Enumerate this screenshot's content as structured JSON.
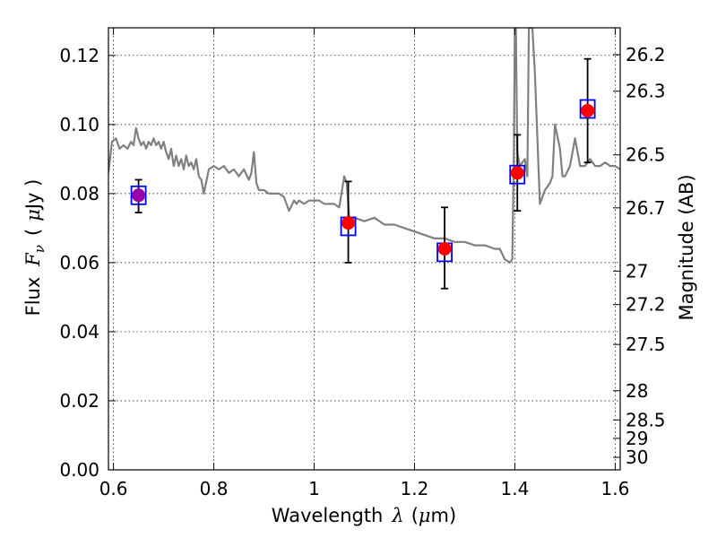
{
  "chart_data": {
    "type": "scatter",
    "title": "",
    "xlabel": {
      "prefix": "Wavelength",
      "symbol": "λ",
      "open": "(",
      "mu": "μ",
      "unit": "m)"
    },
    "ylabel": {
      "prefix": "Flux",
      "symbol": "F",
      "sub": "ν",
      "open": "(",
      "mu": "μ",
      "unit": "Jy )"
    },
    "y2label": "Magnitude (AB)",
    "xlim": [
      0.59,
      1.61
    ],
    "ylim": [
      0.0,
      0.128
    ],
    "grid": true,
    "x_ticks": [
      {
        "value": 0.6,
        "label": "0.6"
      },
      {
        "value": 0.8,
        "label": "0.8"
      },
      {
        "value": 1.0,
        "label": "1"
      },
      {
        "value": 1.2,
        "label": "1.2"
      },
      {
        "value": 1.4,
        "label": "1.4"
      },
      {
        "value": 1.6,
        "label": "1.6"
      }
    ],
    "y_ticks": [
      {
        "value": 0.0,
        "label": "0.00"
      },
      {
        "value": 0.02,
        "label": "0.02"
      },
      {
        "value": 0.04,
        "label": "0.04"
      },
      {
        "value": 0.06,
        "label": "0.06"
      },
      {
        "value": 0.08,
        "label": "0.08"
      },
      {
        "value": 0.1,
        "label": "0.10"
      },
      {
        "value": 0.12,
        "label": "0.12"
      }
    ],
    "y2_ticks": [
      {
        "mag": 26.2,
        "label": "26.2"
      },
      {
        "mag": 26.3,
        "label": "26.3"
      },
      {
        "mag": 26.5,
        "label": "26.5"
      },
      {
        "mag": 26.7,
        "label": "26.7"
      },
      {
        "mag": 27.0,
        "label": "27"
      },
      {
        "mag": 27.2,
        "label": "27.2"
      },
      {
        "mag": 27.5,
        "label": "27.5"
      },
      {
        "mag": 28.0,
        "label": "28"
      },
      {
        "mag": 28.5,
        "label": "28.5"
      },
      {
        "mag": 29.0,
        "label": "29"
      },
      {
        "mag": 30.0,
        "label": "30"
      }
    ],
    "series": [
      {
        "name": "model_spectrum",
        "kind": "line",
        "color": "#808080",
        "x": [
          0.59,
          0.597,
          0.605,
          0.612,
          0.62,
          0.628,
          0.635,
          0.64,
          0.645,
          0.65,
          0.655,
          0.66,
          0.665,
          0.67,
          0.675,
          0.68,
          0.685,
          0.69,
          0.695,
          0.7,
          0.705,
          0.71,
          0.715,
          0.72,
          0.725,
          0.73,
          0.735,
          0.74,
          0.745,
          0.75,
          0.755,
          0.76,
          0.765,
          0.77,
          0.775,
          0.78,
          0.79,
          0.8,
          0.81,
          0.82,
          0.83,
          0.84,
          0.85,
          0.86,
          0.87,
          0.875,
          0.88,
          0.885,
          0.89,
          0.9,
          0.91,
          0.92,
          0.93,
          0.94,
          0.95,
          0.96,
          0.965,
          0.97,
          0.98,
          0.99,
          1.0,
          1.01,
          1.02,
          1.03,
          1.04,
          1.05,
          1.06,
          1.065,
          1.07,
          1.08,
          1.1,
          1.12,
          1.14,
          1.16,
          1.18,
          1.2,
          1.22,
          1.24,
          1.26,
          1.28,
          1.3,
          1.32,
          1.34,
          1.36,
          1.37,
          1.38,
          1.39,
          1.395,
          1.398,
          1.4,
          1.402,
          1.405,
          1.41,
          1.415,
          1.42,
          1.425,
          1.428,
          1.432,
          1.435,
          1.44,
          1.45,
          1.46,
          1.465,
          1.47,
          1.475,
          1.48,
          1.49,
          1.495,
          1.5,
          1.51,
          1.52,
          1.53,
          1.54,
          1.55,
          1.56,
          1.57,
          1.58,
          1.59,
          1.6,
          1.61
        ],
        "y": [
          0.086,
          0.095,
          0.096,
          0.093,
          0.094,
          0.093,
          0.095,
          0.094,
          0.099,
          0.096,
          0.094,
          0.095,
          0.093,
          0.095,
          0.094,
          0.096,
          0.094,
          0.095,
          0.093,
          0.095,
          0.092,
          0.09,
          0.093,
          0.088,
          0.091,
          0.088,
          0.09,
          0.087,
          0.091,
          0.088,
          0.089,
          0.087,
          0.09,
          0.085,
          0.084,
          0.08,
          0.087,
          0.088,
          0.087,
          0.088,
          0.086,
          0.087,
          0.085,
          0.087,
          0.084,
          0.086,
          0.092,
          0.083,
          0.081,
          0.081,
          0.08,
          0.08,
          0.08,
          0.079,
          0.075,
          0.078,
          0.077,
          0.078,
          0.077,
          0.078,
          0.078,
          0.078,
          0.077,
          0.077,
          0.077,
          0.076,
          0.085,
          0.083,
          0.073,
          0.073,
          0.072,
          0.073,
          0.071,
          0.071,
          0.07,
          0.069,
          0.068,
          0.067,
          0.067,
          0.066,
          0.066,
          0.065,
          0.065,
          0.064,
          0.064,
          0.061,
          0.06,
          0.061,
          0.09,
          0.128,
          0.128,
          0.092,
          0.088,
          0.089,
          0.09,
          0.085,
          0.128,
          0.128,
          0.128,
          0.115,
          0.077,
          0.081,
          0.082,
          0.083,
          0.085,
          0.1,
          0.093,
          0.085,
          0.085,
          0.088,
          0.096,
          0.088,
          0.088,
          0.09,
          0.088,
          0.088,
          0.089,
          0.088,
          0.088,
          0.087
        ],
        "clip_top": 0.128
      },
      {
        "name": "model_band_flux",
        "kind": "marker",
        "marker": "square",
        "color": "#0000ff",
        "x": [
          0.65,
          1.068,
          1.26,
          1.405,
          1.545
        ],
        "y": [
          0.0795,
          0.0705,
          0.063,
          0.0855,
          0.1045
        ]
      },
      {
        "name": "observed",
        "kind": "errorbar",
        "marker": "circle",
        "color": "#ff0000",
        "x": [
          0.65,
          1.068,
          1.26,
          1.405,
          1.545
        ],
        "y": [
          0.0795,
          0.0715,
          0.064,
          0.086,
          0.104
        ],
        "yerr_low": [
          0.0745,
          0.06,
          0.0525,
          0.075,
          0.089
        ],
        "yerr_high": [
          0.084,
          0.0835,
          0.076,
          0.097,
          0.119
        ],
        "point_colors": [
          "#9900aa",
          "#ff0000",
          "#ff0000",
          "#ff0000",
          "#ff0000"
        ],
        "errorbar_color": "#000000"
      }
    ]
  }
}
